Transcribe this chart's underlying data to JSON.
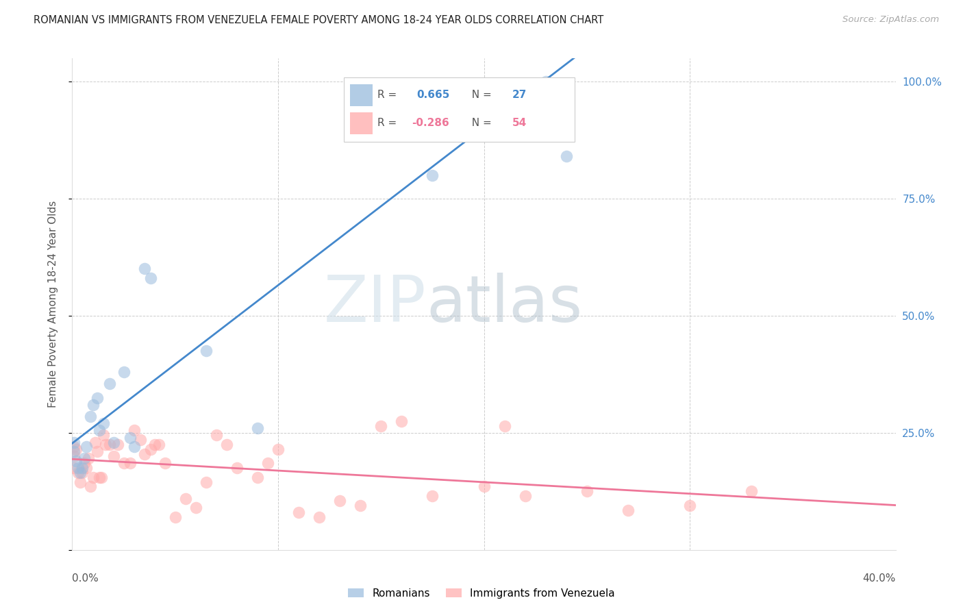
{
  "title": "ROMANIAN VS IMMIGRANTS FROM VENEZUELA FEMALE POVERTY AMONG 18-24 YEAR OLDS CORRELATION CHART",
  "source": "Source: ZipAtlas.com",
  "ylabel": "Female Poverty Among 18-24 Year Olds",
  "xlim": [
    0.0,
    0.4
  ],
  "ylim": [
    0.0,
    1.05
  ],
  "blue_color": "#99BBDD",
  "pink_color": "#FFAAAA",
  "blue_line_color": "#4488CC",
  "pink_line_color": "#EE7799",
  "romanians_x": [
    0.001,
    0.001,
    0.002,
    0.003,
    0.004,
    0.005,
    0.006,
    0.007,
    0.009,
    0.01,
    0.012,
    0.013,
    0.015,
    0.018,
    0.02,
    0.025,
    0.028,
    0.03,
    0.035,
    0.038,
    0.065,
    0.09,
    0.15,
    0.17,
    0.175,
    0.23,
    0.24
  ],
  "romanians_y": [
    0.21,
    0.23,
    0.19,
    0.175,
    0.165,
    0.175,
    0.195,
    0.22,
    0.285,
    0.31,
    0.325,
    0.255,
    0.27,
    0.355,
    0.23,
    0.38,
    0.24,
    0.22,
    0.6,
    0.58,
    0.425,
    0.26,
    0.97,
    0.97,
    0.8,
    1.0,
    0.84
  ],
  "venezuela_x": [
    0.001,
    0.001,
    0.001,
    0.002,
    0.003,
    0.004,
    0.005,
    0.006,
    0.007,
    0.008,
    0.009,
    0.01,
    0.011,
    0.012,
    0.013,
    0.014,
    0.015,
    0.016,
    0.018,
    0.02,
    0.022,
    0.025,
    0.028,
    0.03,
    0.033,
    0.035,
    0.038,
    0.04,
    0.042,
    0.045,
    0.05,
    0.055,
    0.06,
    0.065,
    0.07,
    0.075,
    0.08,
    0.09,
    0.095,
    0.1,
    0.11,
    0.12,
    0.13,
    0.14,
    0.15,
    0.16,
    0.175,
    0.2,
    0.21,
    0.22,
    0.25,
    0.27,
    0.3,
    0.33
  ],
  "venezuela_y": [
    0.2,
    0.22,
    0.175,
    0.215,
    0.165,
    0.145,
    0.165,
    0.185,
    0.175,
    0.195,
    0.135,
    0.155,
    0.23,
    0.21,
    0.155,
    0.155,
    0.245,
    0.225,
    0.225,
    0.2,
    0.225,
    0.185,
    0.185,
    0.255,
    0.235,
    0.205,
    0.215,
    0.225,
    0.225,
    0.185,
    0.07,
    0.11,
    0.09,
    0.145,
    0.245,
    0.225,
    0.175,
    0.155,
    0.185,
    0.215,
    0.08,
    0.07,
    0.105,
    0.095,
    0.265,
    0.275,
    0.115,
    0.135,
    0.265,
    0.115,
    0.125,
    0.085,
    0.095,
    0.125
  ]
}
